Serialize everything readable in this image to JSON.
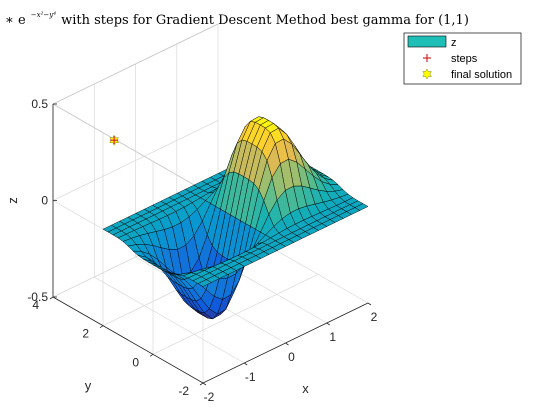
{
  "chart_data": {
    "type": "surface",
    "title": {
      "prefix": "∗ e",
      "exponent": "−x²−y⁴",
      "suffix": " with steps for Gradient Descent Method best gamma for (1,1)"
    },
    "xlabel": "x",
    "ylabel": "y",
    "zlabel": "z",
    "xlim": [
      -2,
      2
    ],
    "ylim": [
      -2,
      4
    ],
    "zlim": [
      -0.5,
      0.5
    ],
    "x_ticks": [
      "-2",
      "-1",
      "0",
      "1",
      "2"
    ],
    "y_ticks": [
      "-2",
      "0",
      "2",
      "4"
    ],
    "z_ticks": [
      "-0.5",
      "0",
      "0.5"
    ],
    "grid": true,
    "colormap": "parula",
    "surface": {
      "name": "z",
      "x_range": [
        -2,
        2
      ],
      "y_range": [
        -2,
        2
      ],
      "samples": 21,
      "peak": {
        "x": 0.9,
        "y": 0.0,
        "z": 0.43
      },
      "trough": {
        "x": -0.9,
        "y": 0.0,
        "z": -0.43
      }
    },
    "series": [
      {
        "name": "steps",
        "marker": "+",
        "color": "#d62728",
        "points": [
          {
            "x": -0.7,
            "y": 3.7,
            "z": 0.2
          }
        ]
      },
      {
        "name": "final solution",
        "marker": "hexagram",
        "color": "#ffff00",
        "points": [
          {
            "x": -0.7,
            "y": 3.7,
            "z": 0.2
          }
        ]
      }
    ],
    "legend": {
      "placement": "top-right",
      "entries": [
        {
          "label": "z",
          "swatch": "#1fbfb8"
        },
        {
          "label": "steps",
          "marker": "+",
          "color": "#d62728"
        },
        {
          "label": "final solution",
          "marker": "hexagram",
          "color": "#ffff00"
        }
      ]
    }
  }
}
